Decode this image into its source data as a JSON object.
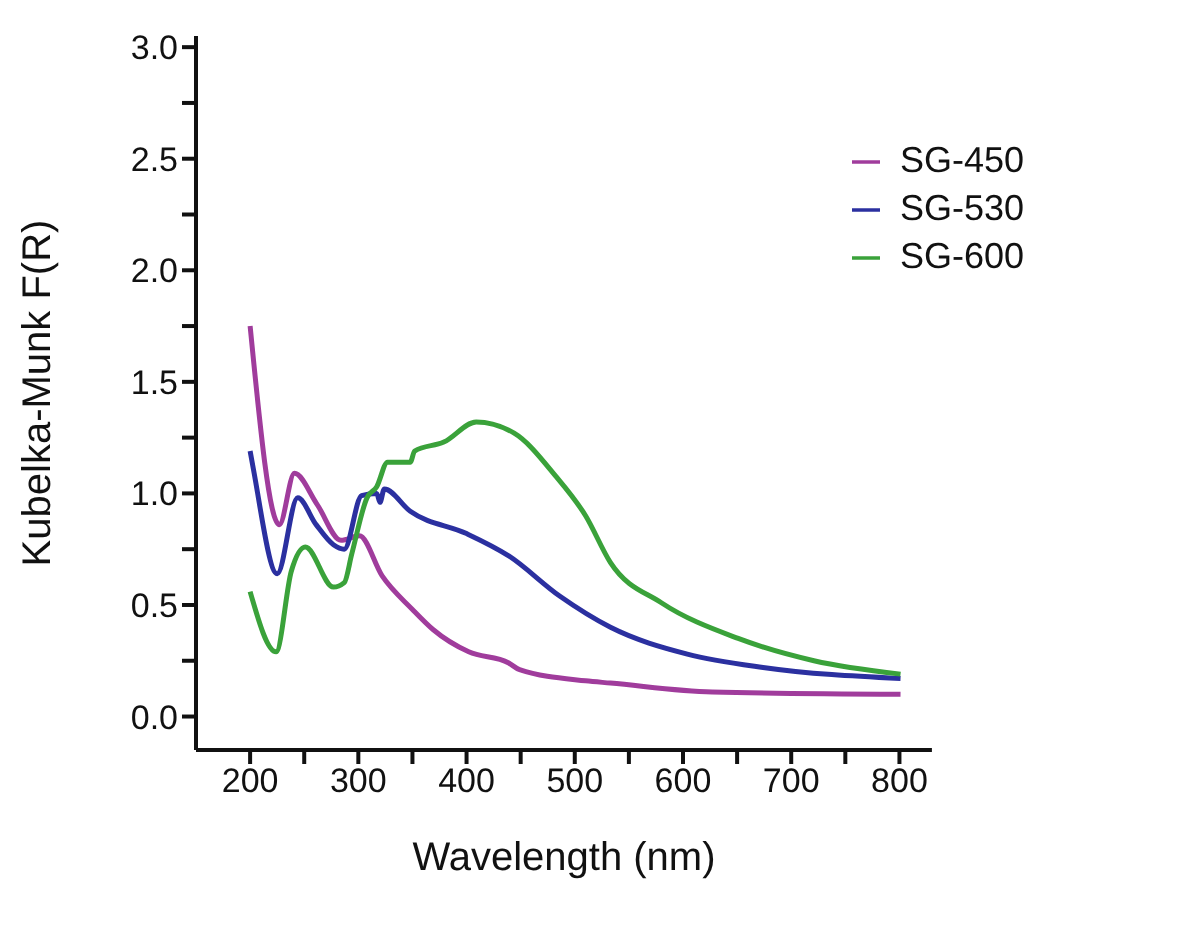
{
  "chart_data": {
    "type": "line",
    "xlabel": "Wavelength (nm)",
    "ylabel": "Kubelka-Munk F(R)",
    "xlim": [
      150,
      830
    ],
    "ylim": [
      -0.15,
      3.05
    ],
    "xticks": [
      200,
      {
        "value": 250,
        "label": null
      },
      300,
      {
        "value": 350,
        "label": null
      },
      400,
      {
        "value": 450,
        "label": null
      },
      500,
      {
        "value": 550,
        "label": null
      },
      600,
      {
        "value": 650,
        "label": null
      },
      700,
      {
        "value": 750,
        "label": null
      },
      800
    ],
    "yticks": [
      {
        "value": 0,
        "label": "0.0"
      },
      {
        "value": 0.25,
        "label": null
      },
      {
        "value": 0.5,
        "label": "0.5"
      },
      {
        "value": 0.75,
        "label": null
      },
      {
        "value": 1.0,
        "label": "1.0"
      },
      {
        "value": 1.25,
        "label": null
      },
      {
        "value": 1.5,
        "label": "1.5"
      },
      {
        "value": 1.75,
        "label": null
      },
      {
        "value": 2.0,
        "label": "2.0"
      },
      {
        "value": 2.25,
        "label": null
      },
      {
        "value": 2.5,
        "label": "2.5"
      },
      {
        "value": 2.75,
        "label": null
      },
      {
        "value": 3.0,
        "label": "3.0"
      }
    ],
    "grid": false,
    "legend": "top right",
    "marker": "none",
    "line_style": "solid",
    "series": [
      {
        "name": "SG-450",
        "color": "#a03c9c",
        "x": [
          200,
          227,
          241,
          262,
          284,
          301,
          322,
          350,
          369,
          402,
          439,
          449,
          510,
          533,
          627,
          801
        ],
        "values": [
          1.75,
          0.86,
          1.09,
          0.95,
          0.79,
          0.81,
          0.63,
          0.48,
          0.39,
          0.29,
          0.24,
          0.21,
          0.16,
          0.15,
          0.11,
          0.1
        ]
      },
      {
        "name": "SG-530",
        "color": "#2b30a0",
        "x": [
          200,
          203,
          225,
          244,
          261,
          277,
          287,
          303,
          317,
          320,
          324,
          348,
          400,
          439,
          486,
          533,
          604,
          674,
          801
        ],
        "values": [
          1.19,
          1.11,
          0.64,
          0.98,
          0.86,
          0.77,
          0.75,
          0.99,
          1.0,
          0.96,
          1.02,
          0.92,
          0.82,
          0.72,
          0.54,
          0.4,
          0.28,
          0.22,
          0.17
        ]
      },
      {
        "name": "SG-600",
        "color": "#3aa23a",
        "x": [
          200,
          224,
          238,
          251,
          277,
          287,
          294,
          308,
          317,
          327,
          348,
          352,
          379,
          409,
          444,
          482,
          510,
          533,
          580,
          651,
          721,
          801
        ],
        "values": [
          0.56,
          0.29,
          0.65,
          0.76,
          0.58,
          0.6,
          0.73,
          0.98,
          1.03,
          1.14,
          1.14,
          1.19,
          1.23,
          1.32,
          1.27,
          1.08,
          0.9,
          0.69,
          0.51,
          0.35,
          0.25,
          0.19
        ]
      }
    ]
  }
}
